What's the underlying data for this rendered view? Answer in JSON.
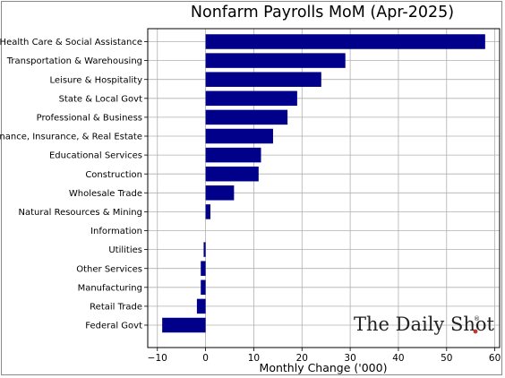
{
  "chart_data": {
    "type": "bar",
    "orientation": "horizontal",
    "title": "Nonfarm Payrolls MoM (Apr-2025)",
    "xlabel": "Monthly Change ('000)",
    "ylabel": "",
    "xlim": [
      -12,
      61
    ],
    "xticks": [
      -10,
      0,
      10,
      20,
      30,
      40,
      50,
      60
    ],
    "grid": true,
    "bar_color": "#00008b",
    "categories": [
      "Health Care & Social Assistance",
      "Transportation & Warehousing",
      "Leisure & Hospitality",
      "State & Local Govt",
      "Professional & Business",
      "Finance, Insurance, & Real Estate",
      "Educational Services",
      "Construction",
      "Wholesale Trade",
      "Natural Resources & Mining",
      "Information",
      "Utilities",
      "Other Services",
      "Manufacturing",
      "Retail Trade",
      "Federal Govt"
    ],
    "values": [
      58,
      29,
      24,
      19,
      17,
      14,
      11.5,
      11,
      5.9,
      1.0,
      0,
      -0.4,
      -1.0,
      -1.0,
      -1.8,
      -9.0
    ]
  },
  "watermark": {
    "text": "The Daily Shot",
    "mark": "®",
    "dot_color": "#c0392b"
  }
}
